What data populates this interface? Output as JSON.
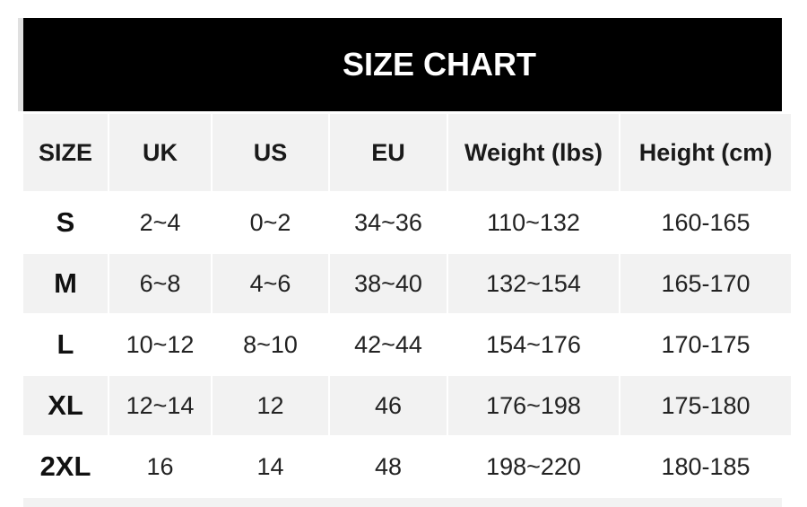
{
  "title": "SIZE CHART",
  "headers": [
    "SIZE",
    "UK",
    "US",
    "EU",
    "Weight (lbs)",
    "Height (cm)"
  ],
  "rows": [
    [
      "S",
      "2~4",
      "0~2",
      "34~36",
      "110~132",
      "160-165"
    ],
    [
      "M",
      "6~8",
      "4~6",
      "38~40",
      "132~154",
      "165-170"
    ],
    [
      "L",
      "10~12",
      "8~10",
      "42~44",
      "154~176",
      "170-175"
    ],
    [
      "XL",
      "12~14",
      "12",
      "46",
      "176~198",
      "175-180"
    ],
    [
      "2XL",
      "16",
      "14",
      "48",
      "198~220",
      "180-185"
    ]
  ]
}
